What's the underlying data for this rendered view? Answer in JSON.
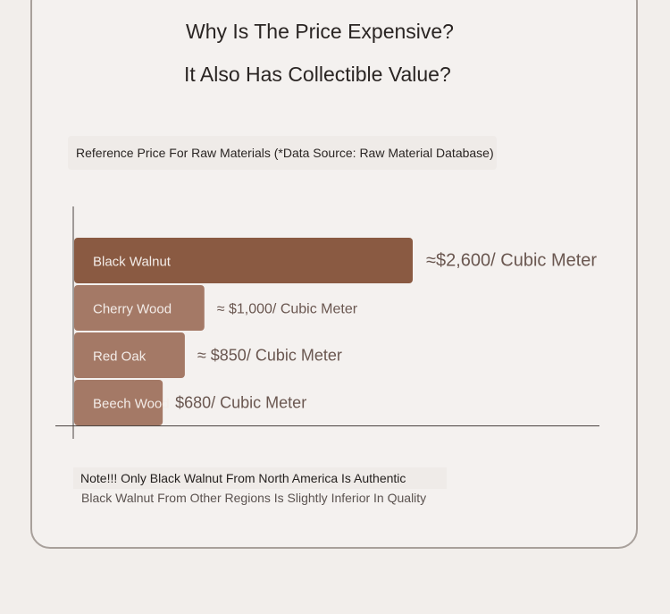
{
  "header": {
    "title": "Why Is The Price Expensive?",
    "subtitle_line": "It Also Has Collectible Value?"
  },
  "chart_data": {
    "type": "bar",
    "orientation": "horizontal",
    "title": "Reference Price For Raw Materials (*Data Source: Raw Material Database)",
    "categories": [
      "Black Walnut",
      "Cherry Wood",
      "Red Oak",
      "Beech Wood"
    ],
    "values": [
      2600,
      1000,
      850,
      680
    ],
    "value_labels": [
      "≈$2,600/ Cubic Meter",
      "≈ $1,000/ Cubic Meter",
      "≈ $850/ Cubic Meter",
      "$680/ Cubic Meter"
    ],
    "unit": "Cubic Meter",
    "xlabel": "",
    "ylabel": "",
    "grid": false,
    "legend": "none",
    "colors": [
      "#8a5a42",
      "#a47966",
      "#a47966",
      "#a47966"
    ]
  },
  "notes": {
    "line1": "Note!!! Only Black Walnut From North America Is Authentic",
    "line2": "Black Walnut From Other Regions Is Slightly Inferior In Quality"
  },
  "colors": {
    "background": "#f2eeeb",
    "card": "#f4f1ef",
    "border": "#a8a09b",
    "bar_primary": "#8a5a42",
    "bar_secondary": "#a47966",
    "value_text": "#6a5750"
  }
}
